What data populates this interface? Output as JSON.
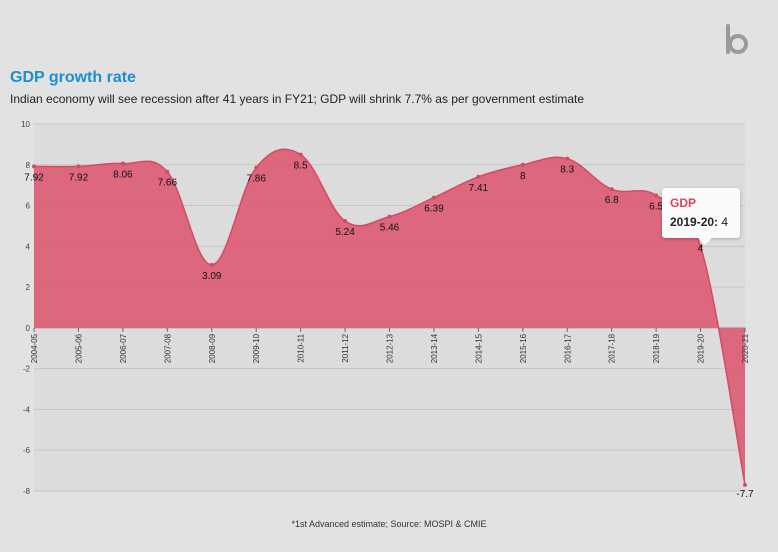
{
  "header": {
    "title": "GDP growth rate",
    "subtitle": "Indian economy will see recession after 41 years in FY21; GDP will shrink 7.7% as per government estimate"
  },
  "footnote": "*1st Advanced estimate; Source: MOSPI & CMIE",
  "tooltip": {
    "series": "GDP",
    "category": "2019-20:",
    "value": "4"
  },
  "logo": {
    "icon": "brand-logo-icon"
  },
  "colors": {
    "area_fill": "#dc6077",
    "area_stroke": "#d44a65",
    "background": "#e2e2e2",
    "plot_background": "#dcdcdc",
    "title": "#1b8fd1"
  },
  "chart_data": {
    "type": "area",
    "title": "GDP growth rate",
    "xlabel": "",
    "ylabel": "",
    "ylim": [
      -8,
      10
    ],
    "yticks": [
      -8,
      -6,
      -4,
      -2,
      0,
      2,
      4,
      6,
      8,
      10
    ],
    "grid": true,
    "categories": [
      "2004-05",
      "2005-06",
      "2006-07",
      "2007-08",
      "2008-09",
      "2009-10",
      "2010-11",
      "2011-12",
      "2012-13",
      "2013-14",
      "2014-15",
      "2015-16",
      "2016-17",
      "2017-18",
      "2018-19",
      "2019-20",
      "2020-21"
    ],
    "series": [
      {
        "name": "GDP",
        "values": [
          7.92,
          7.92,
          8.06,
          7.66,
          3.09,
          7.86,
          8.5,
          5.24,
          5.46,
          6.39,
          7.41,
          8,
          8.3,
          6.8,
          6.5,
          4,
          -7.7
        ]
      }
    ]
  }
}
